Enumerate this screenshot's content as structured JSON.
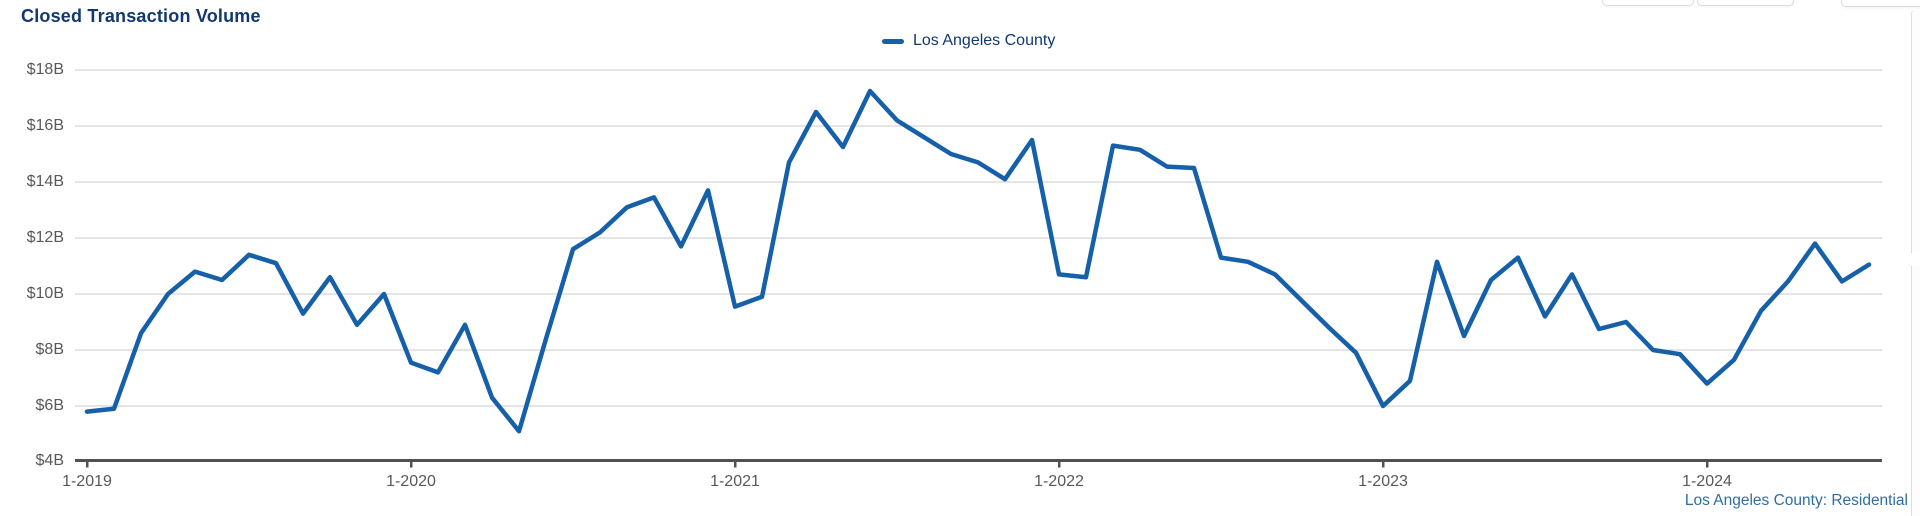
{
  "title": "Closed Transaction Volume",
  "legend": {
    "position": "top-center",
    "items": [
      {
        "label": "Los Angeles County",
        "color": "#1560a8"
      }
    ]
  },
  "footer": {
    "link_label": "Los Angeles County: Residential"
  },
  "colors": {
    "title": "#12386e",
    "series": "#1560a8",
    "axis_text": "#58595b",
    "gridline": "#cbcbcb",
    "axis_line": "#515153",
    "footer_link": "#2e6da6",
    "background": "#ffffff"
  },
  "chart_data": {
    "type": "line",
    "title": "Closed Transaction Volume",
    "unit": "billions USD",
    "x_start": "1-2019",
    "x_end": "7-2024",
    "x_frequency": "monthly",
    "x_tick_labels": [
      "1-2019",
      "1-2020",
      "1-2021",
      "1-2022",
      "1-2023",
      "1-2024"
    ],
    "x_tick_month_indices": [
      0,
      12,
      24,
      36,
      48,
      60
    ],
    "y_tick_labels": [
      "$18B",
      "$16B",
      "$14B",
      "$12B",
      "$10B",
      "$8B",
      "$6B",
      "$4B"
    ],
    "y_tick_values": [
      18,
      16,
      14,
      12,
      10,
      8,
      6,
      4
    ],
    "ylim": [
      4,
      18
    ],
    "grid": "horizontal",
    "legend_position": "top-center",
    "series": [
      {
        "name": "Los Angeles County",
        "color": "#1560a8",
        "values": [
          5.8,
          5.9,
          8.6,
          10.0,
          10.8,
          10.5,
          11.4,
          11.1,
          9.3,
          10.6,
          8.9,
          10.0,
          7.55,
          7.2,
          8.9,
          6.3,
          5.1,
          8.4,
          11.6,
          12.2,
          13.1,
          13.45,
          11.7,
          13.7,
          9.55,
          9.9,
          14.7,
          16.5,
          15.25,
          17.25,
          16.2,
          15.6,
          15.0,
          14.7,
          14.1,
          15.5,
          10.7,
          10.6,
          15.3,
          15.15,
          14.55,
          14.5,
          11.3,
          11.15,
          10.7,
          9.75,
          8.8,
          7.9,
          6.0,
          6.9,
          11.15,
          8.5,
          10.5,
          11.3,
          9.2,
          10.7,
          8.75,
          9.0,
          8.0,
          7.85,
          6.8,
          7.65,
          9.4,
          10.45,
          11.8,
          10.45,
          11.05
        ]
      }
    ]
  }
}
